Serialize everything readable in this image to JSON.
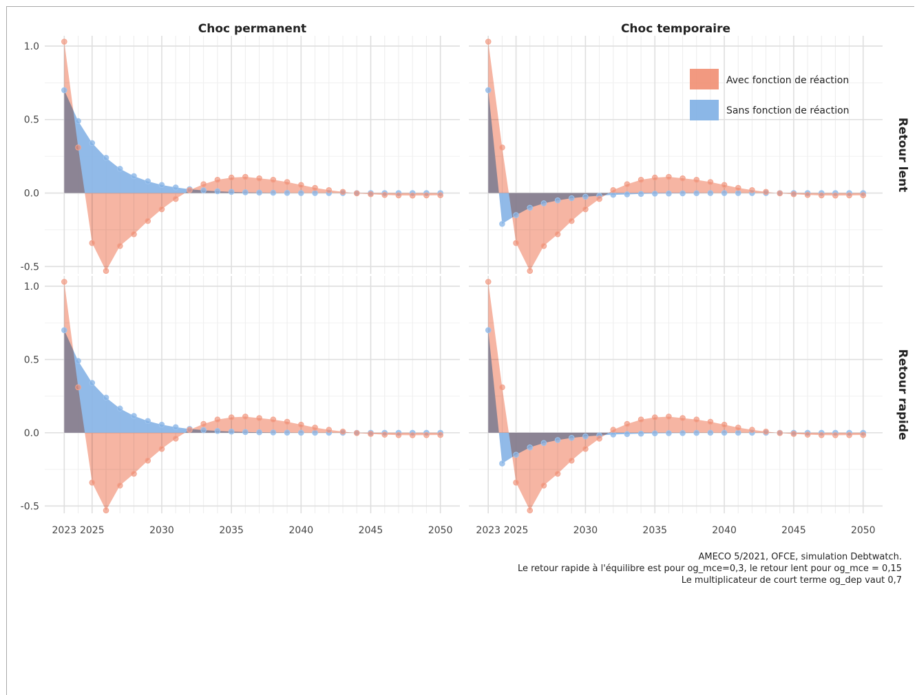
{
  "chart_data": {
    "type": "area",
    "facets": {
      "columns": [
        "Choc permanent",
        "Choc temporaire"
      ],
      "rows": [
        "Retour lent",
        "Retour rapide"
      ]
    },
    "x": [
      2023,
      2024,
      2025,
      2026,
      2027,
      2028,
      2029,
      2030,
      2031,
      2032,
      2033,
      2034,
      2035,
      2036,
      2037,
      2038,
      2039,
      2040,
      2041,
      2042,
      2043,
      2044,
      2045,
      2046,
      2047,
      2048,
      2049,
      2050
    ],
    "x_ticks": [
      2023,
      2025,
      2030,
      2035,
      2040,
      2045,
      2050
    ],
    "y_ticks": [
      -0.5,
      0.0,
      0.5,
      1.0
    ],
    "y_tick_labels": [
      "-0.5",
      "0.0",
      "0.5",
      "1.0"
    ],
    "ylim": [
      -0.55,
      1.07
    ],
    "grid": true,
    "legend_position": "top-right (inside upper-right panel)",
    "series": [
      {
        "name": "Avec fonction de réaction",
        "color": "#f0876a"
      },
      {
        "name": "Sans fonction de réaction",
        "color": "#85b3e6"
      }
    ],
    "panels": [
      {
        "column": "Choc permanent",
        "row": "Retour lent",
        "avec": [
          1.03,
          0.31,
          -0.34,
          -0.53,
          -0.36,
          -0.28,
          -0.19,
          -0.11,
          -0.04,
          0.02,
          0.06,
          0.09,
          0.105,
          0.11,
          0.1,
          0.09,
          0.075,
          0.055,
          0.035,
          0.02,
          0.008,
          -0.002,
          -0.008,
          -0.013,
          -0.016,
          -0.017,
          -0.016,
          -0.015
        ],
        "sans": [
          0.7,
          0.49,
          0.34,
          0.24,
          0.165,
          0.115,
          0.08,
          0.055,
          0.038,
          0.026,
          0.018,
          0.012,
          0.008,
          0.005,
          0.003,
          0.002,
          0.001,
          0.0,
          0.0,
          0.0,
          0.0,
          0.0,
          0.0,
          0.0,
          0.0,
          0.0,
          0.0,
          0.0
        ]
      },
      {
        "column": "Choc temporaire",
        "row": "Retour lent",
        "avec": [
          1.03,
          0.31,
          -0.34,
          -0.53,
          -0.36,
          -0.28,
          -0.19,
          -0.11,
          -0.04,
          0.02,
          0.06,
          0.09,
          0.105,
          0.11,
          0.1,
          0.09,
          0.075,
          0.055,
          0.035,
          0.02,
          0.008,
          -0.002,
          -0.008,
          -0.013,
          -0.016,
          -0.017,
          -0.016,
          -0.015
        ],
        "sans": [
          0.7,
          -0.21,
          -0.15,
          -0.1,
          -0.07,
          -0.05,
          -0.035,
          -0.025,
          -0.018,
          -0.012,
          -0.009,
          -0.006,
          -0.004,
          -0.003,
          -0.002,
          -0.001,
          0.0,
          0.0,
          0.0,
          0.0,
          0.0,
          0.0,
          0.0,
          0.0,
          0.0,
          0.0,
          0.0,
          0.0
        ]
      },
      {
        "column": "Choc permanent",
        "row": "Retour rapide",
        "avec": [
          1.03,
          0.31,
          -0.34,
          -0.53,
          -0.36,
          -0.28,
          -0.19,
          -0.11,
          -0.04,
          0.02,
          0.06,
          0.09,
          0.105,
          0.11,
          0.1,
          0.09,
          0.075,
          0.055,
          0.035,
          0.02,
          0.008,
          -0.002,
          -0.008,
          -0.013,
          -0.016,
          -0.017,
          -0.016,
          -0.015
        ],
        "sans": [
          0.7,
          0.49,
          0.34,
          0.24,
          0.165,
          0.115,
          0.08,
          0.055,
          0.038,
          0.026,
          0.018,
          0.012,
          0.008,
          0.005,
          0.003,
          0.002,
          0.001,
          0.0,
          0.0,
          0.0,
          0.0,
          0.0,
          0.0,
          0.0,
          0.0,
          0.0,
          0.0,
          0.0
        ]
      },
      {
        "column": "Choc temporaire",
        "row": "Retour rapide",
        "avec": [
          1.03,
          0.31,
          -0.34,
          -0.53,
          -0.36,
          -0.28,
          -0.19,
          -0.11,
          -0.04,
          0.02,
          0.06,
          0.09,
          0.105,
          0.11,
          0.1,
          0.09,
          0.075,
          0.055,
          0.035,
          0.02,
          0.008,
          -0.002,
          -0.008,
          -0.013,
          -0.016,
          -0.017,
          -0.016,
          -0.015
        ],
        "sans": [
          0.7,
          -0.21,
          -0.15,
          -0.1,
          -0.07,
          -0.05,
          -0.035,
          -0.025,
          -0.018,
          -0.012,
          -0.009,
          -0.006,
          -0.004,
          -0.003,
          -0.002,
          -0.001,
          0.0,
          0.0,
          0.0,
          0.0,
          0.0,
          0.0,
          0.0,
          0.0,
          0.0,
          0.0,
          0.0,
          0.0
        ]
      }
    ]
  },
  "caption": {
    "line1": "AMECO 5/2021, OFCE, simulation Debtwatch.",
    "line2": "Le retour rapide à l'équilibre est pour og_mce=0,3, le retour lent pour og_mce = 0,15",
    "line3": "Le multiplicateur de court terme og_dep vaut 0,7"
  }
}
